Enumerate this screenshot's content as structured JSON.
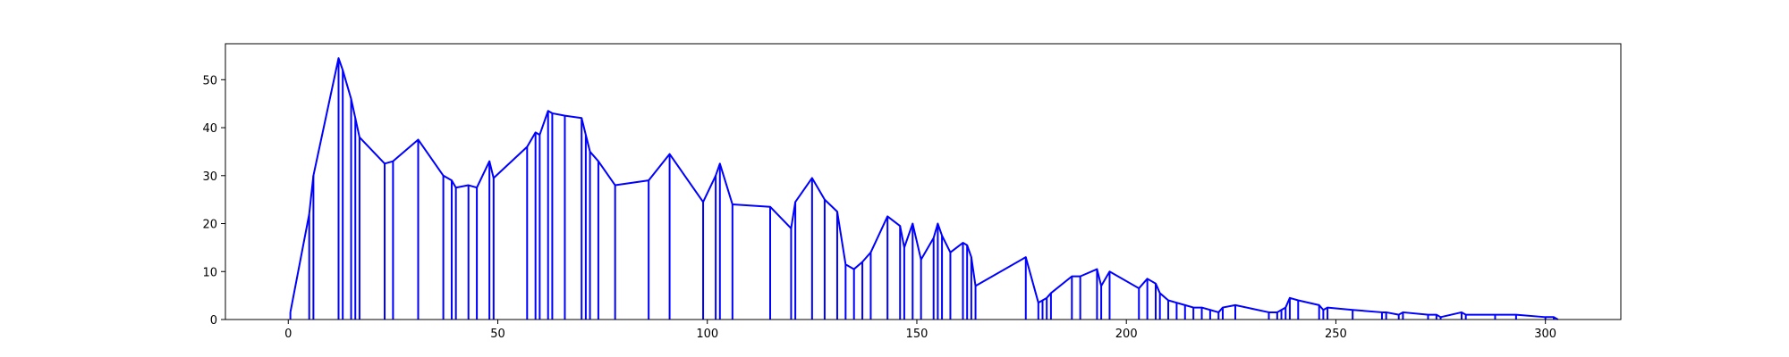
{
  "chart_data": {
    "type": "line",
    "xlim": [
      -15,
      318
    ],
    "ylim": [
      0,
      57.5
    ],
    "xticks": [
      0,
      50,
      100,
      150,
      200,
      250,
      300
    ],
    "yticks": [
      0,
      10,
      20,
      30,
      40,
      50
    ],
    "xtick_labels": [
      "0",
      "50",
      "100",
      "150",
      "200",
      "250",
      "300"
    ],
    "ytick_labels": [
      "0",
      "10",
      "20",
      "30",
      "40",
      "50"
    ],
    "grid": false,
    "series": [
      {
        "color": "#0000ff",
        "style": "stems-with-peak-envelope",
        "points": [
          [
            0.5,
            1.5
          ],
          [
            5,
            22
          ],
          [
            6,
            30
          ],
          [
            12,
            54.5
          ],
          [
            13,
            52
          ],
          [
            15,
            46
          ],
          [
            16,
            42
          ],
          [
            17,
            38
          ],
          [
            23,
            32.5
          ],
          [
            25,
            33
          ],
          [
            31,
            37.5
          ],
          [
            37,
            30
          ],
          [
            39,
            29
          ],
          [
            40,
            27.5
          ],
          [
            43,
            28
          ],
          [
            45,
            27.5
          ],
          [
            48,
            33
          ],
          [
            49,
            29.5
          ],
          [
            57,
            36
          ],
          [
            59,
            39
          ],
          [
            60,
            38.5
          ],
          [
            62,
            43.5
          ],
          [
            63,
            43
          ],
          [
            66,
            42.5
          ],
          [
            70,
            42
          ],
          [
            71,
            38.5
          ],
          [
            72,
            35
          ],
          [
            74,
            33
          ],
          [
            78,
            28
          ],
          [
            86,
            29
          ],
          [
            91,
            34.5
          ],
          [
            99,
            24.5
          ],
          [
            102,
            30
          ],
          [
            103,
            32.5
          ],
          [
            106,
            24
          ],
          [
            115,
            23.5
          ],
          [
            120,
            19
          ],
          [
            121,
            24.5
          ],
          [
            125,
            29.5
          ],
          [
            128,
            25
          ],
          [
            131,
            22.5
          ],
          [
            133,
            11.5
          ],
          [
            135,
            10.5
          ],
          [
            137,
            12
          ],
          [
            139,
            14
          ],
          [
            143,
            21.5
          ],
          [
            146,
            19.5
          ],
          [
            147,
            15
          ],
          [
            149,
            20
          ],
          [
            151,
            12.5
          ],
          [
            154,
            17
          ],
          [
            155,
            20
          ],
          [
            156,
            17.5
          ],
          [
            158,
            14
          ],
          [
            161,
            16
          ],
          [
            162,
            15.5
          ],
          [
            163,
            13
          ],
          [
            164,
            7
          ],
          [
            176,
            13
          ],
          [
            179,
            3.5
          ],
          [
            180,
            4
          ],
          [
            181,
            4.5
          ],
          [
            182,
            5.5
          ],
          [
            187,
            9
          ],
          [
            189,
            9
          ],
          [
            193,
            10.5
          ],
          [
            194,
            7
          ],
          [
            196,
            10
          ],
          [
            203,
            6.5
          ],
          [
            205,
            8.5
          ],
          [
            207,
            7.5
          ],
          [
            208,
            5.5
          ],
          [
            210,
            4
          ],
          [
            212,
            3.5
          ],
          [
            214,
            3
          ],
          [
            216,
            2.5
          ],
          [
            218,
            2.5
          ],
          [
            220,
            2
          ],
          [
            222,
            1.5
          ],
          [
            223,
            2.5
          ],
          [
            226,
            3
          ],
          [
            234,
            1.5
          ],
          [
            236,
            1.5
          ],
          [
            237,
            2
          ],
          [
            238,
            2.5
          ],
          [
            239,
            4.5
          ],
          [
            241,
            4
          ],
          [
            246,
            3
          ],
          [
            247,
            2
          ],
          [
            248,
            2.5
          ],
          [
            254,
            2
          ],
          [
            261,
            1.5
          ],
          [
            262,
            1.5
          ],
          [
            265,
            1
          ],
          [
            266,
            1.5
          ],
          [
            272,
            1
          ],
          [
            274,
            1
          ],
          [
            275,
            0.5
          ],
          [
            280,
            1.5
          ],
          [
            281,
            1
          ],
          [
            288,
            1
          ],
          [
            293,
            1
          ],
          [
            300,
            0.5
          ],
          [
            302,
            0.5
          ],
          [
            303,
            0
          ]
        ]
      }
    ]
  }
}
